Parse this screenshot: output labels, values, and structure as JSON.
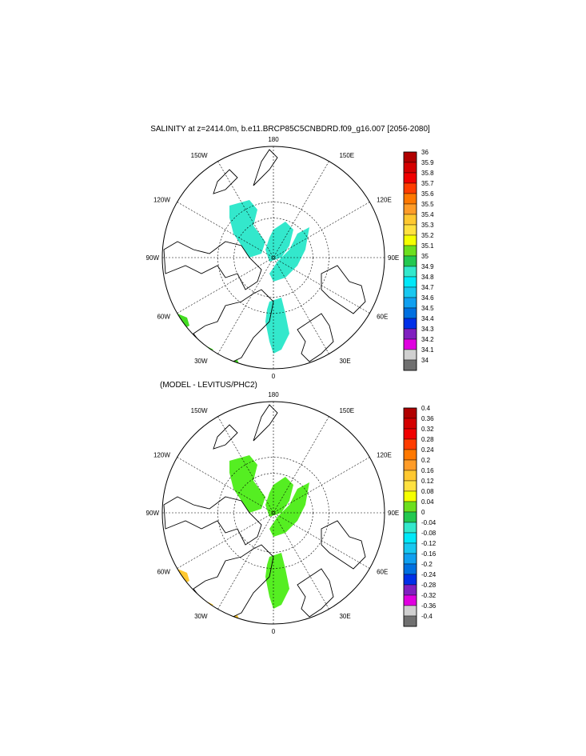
{
  "panels": [
    {
      "title": "SALINITY at z=2414.0m, b.e11.BRCP85C5CNBDRD.f09_g16.007 [2056-2080]",
      "colorbar": {
        "labels": [
          "36",
          "35.9",
          "35.8",
          "35.7",
          "35.6",
          "35.5",
          "35.4",
          "35.3",
          "35.2",
          "35.1",
          "35",
          "34.9",
          "34.8",
          "34.7",
          "34.6",
          "34.5",
          "34.4",
          "34.3",
          "34.2",
          "34.1",
          "34"
        ]
      },
      "field_color": "#33e8cc",
      "edge_color": "#44dd22"
    },
    {
      "title": "(MODEL - LEVITUS/PHC2)",
      "colorbar": {
        "labels": [
          "0.4",
          "0.36",
          "0.32",
          "0.28",
          "0.24",
          "0.2",
          "0.16",
          "0.12",
          "0.08",
          "0.04",
          "0",
          "-0.04",
          "-0.08",
          "-0.12",
          "-0.16",
          "-0.2",
          "-0.24",
          "-0.28",
          "-0.32",
          "-0.36",
          "-0.4"
        ]
      },
      "field_color": "#55ee22",
      "edge_color": "#ffc830"
    }
  ],
  "longitude_labels": {
    "top": "180",
    "bottom": "0",
    "left": "90W",
    "right": "90E",
    "upper_left_1": "150W",
    "upper_left_2": "120W",
    "upper_right_1": "150E",
    "upper_right_2": "120E",
    "lower_left_1": "60W",
    "lower_left_2": "30W",
    "lower_right_1": "60E",
    "lower_right_2": "30E"
  },
  "colorbar_colors": [
    "#b00000",
    "#d40000",
    "#f00000",
    "#ff3c00",
    "#ff7800",
    "#ff9c28",
    "#ffc830",
    "#ffe140",
    "#f5ff00",
    "#6cdf1e",
    "#22c850",
    "#33e8cc",
    "#00e8f8",
    "#18c8f0",
    "#10a0f0",
    "#0070e0",
    "#0030e8",
    "#8020c0",
    "#e000e0",
    "#d0d0d0",
    "#707070"
  ]
}
